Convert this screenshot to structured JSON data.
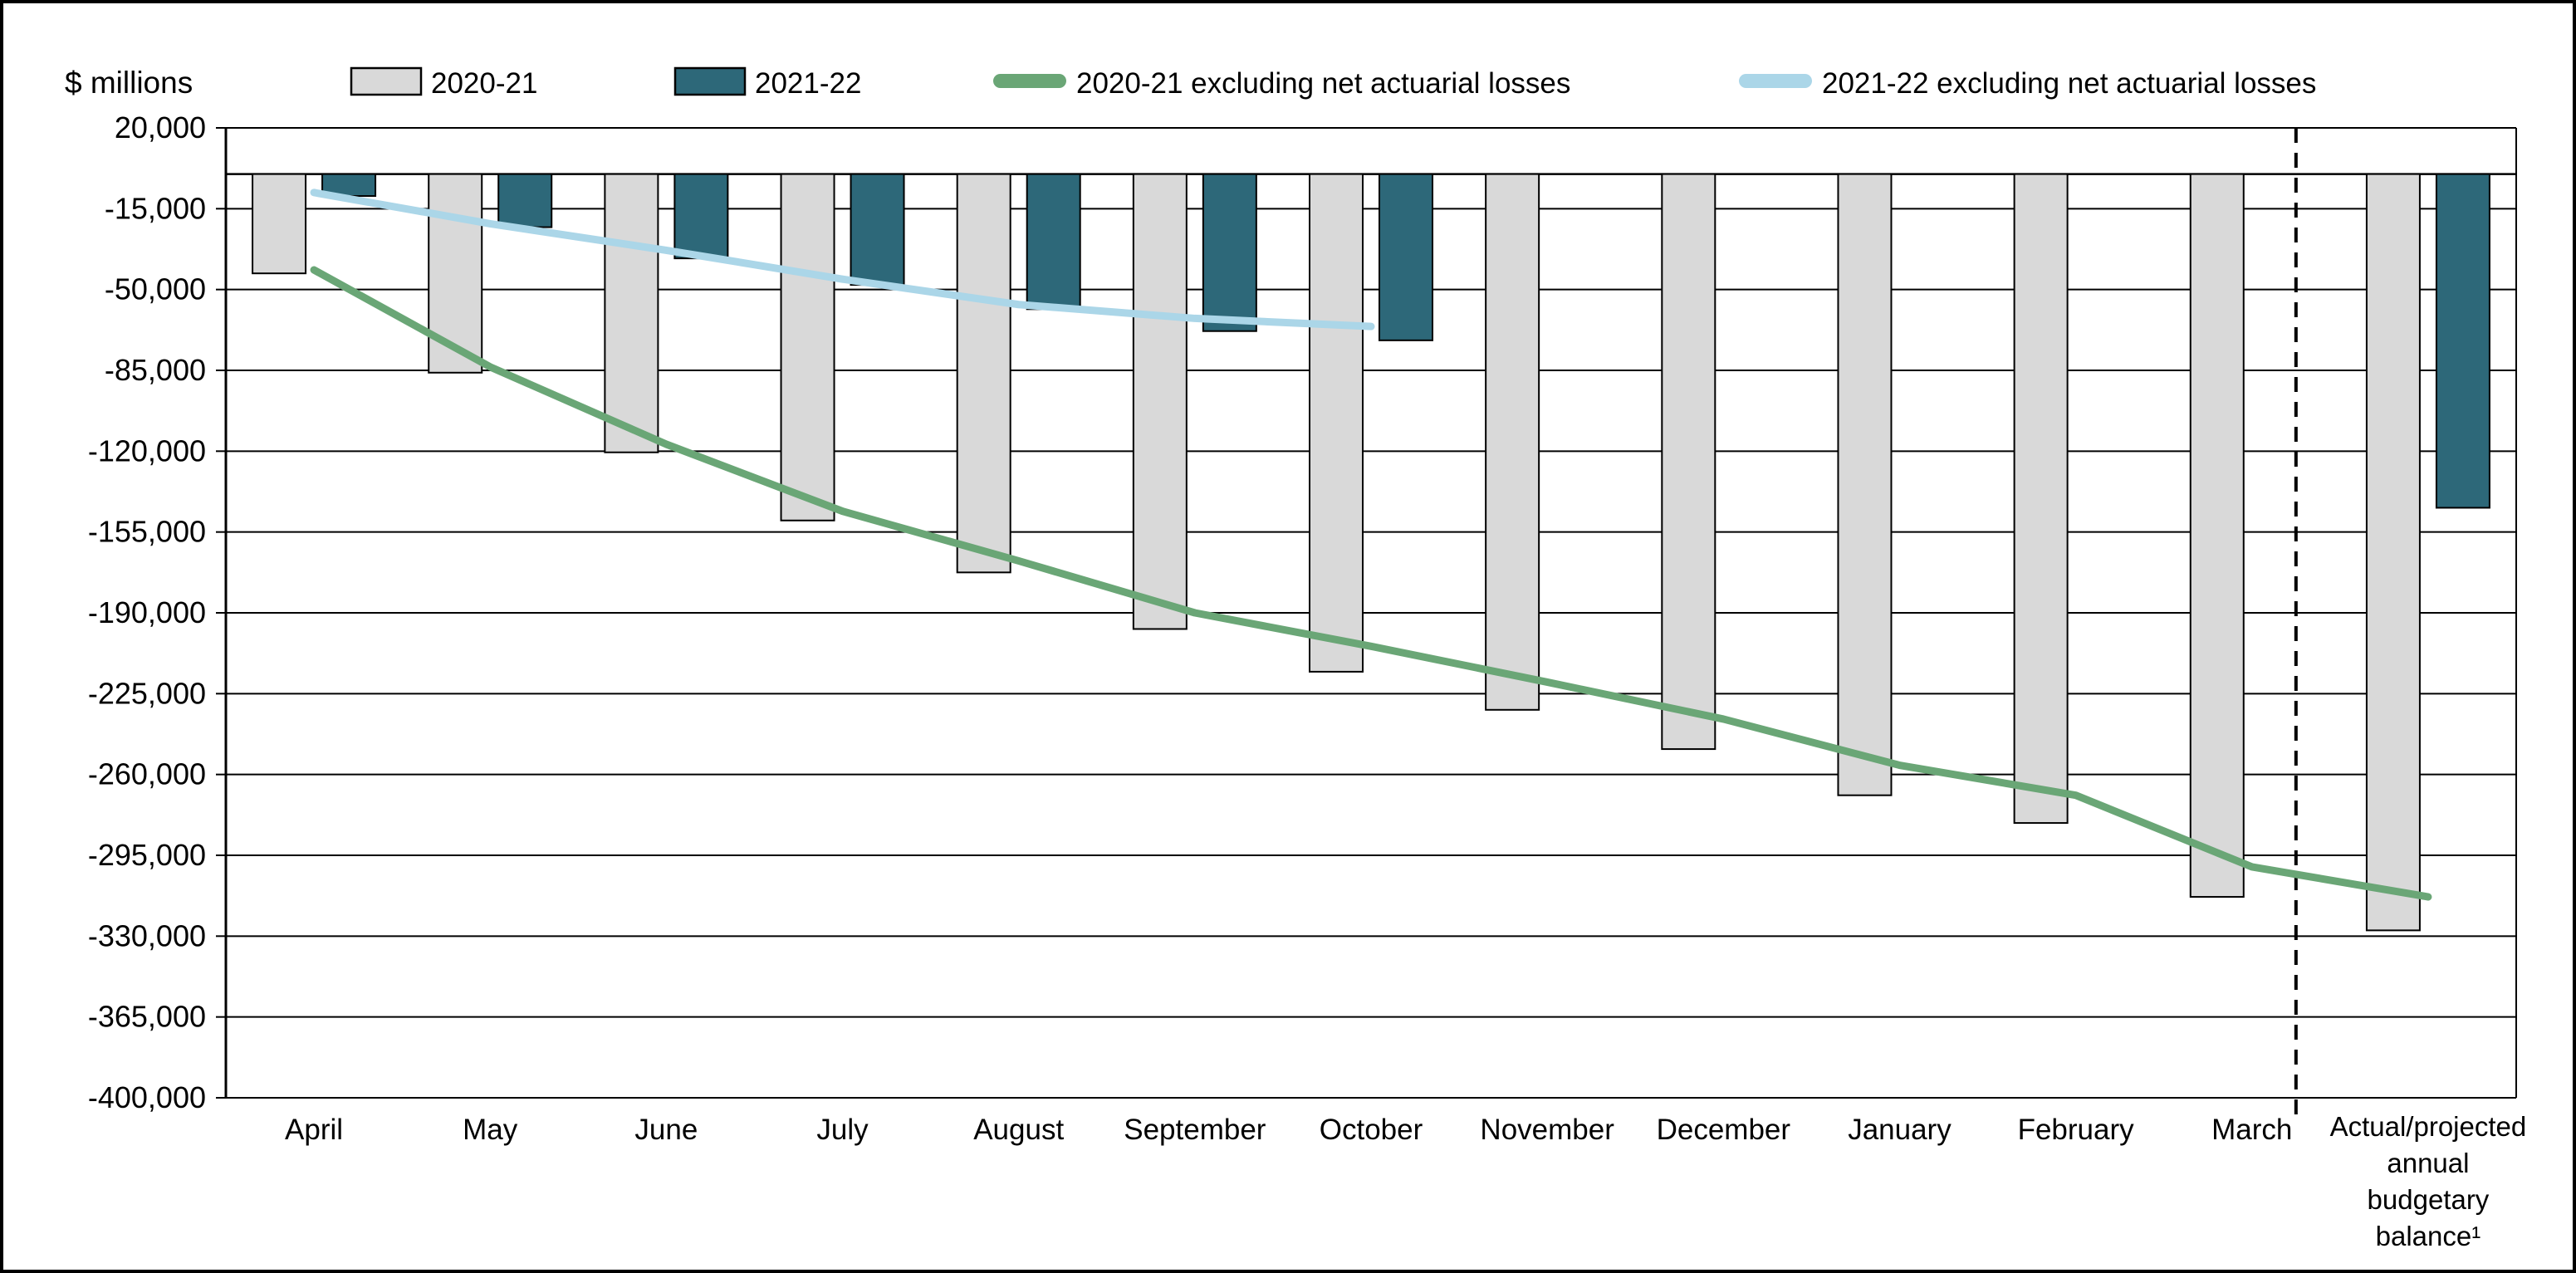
{
  "chart_data": {
    "type": "combo-bar-line",
    "unit_label": "$ millions",
    "legend_position": "top",
    "grid": "horizontal",
    "background_color": "#ffffff",
    "grid_color": "#000000",
    "text_color": "#000000",
    "bar_border_color": "#000000",
    "categories": [
      "April",
      "May",
      "June",
      "July",
      "August",
      "September",
      "October",
      "November",
      "December",
      "January",
      "February",
      "March",
      "Actual/projected annual budgetary balance¹"
    ],
    "series": [
      {
        "name": "2020-21",
        "type": "bar",
        "color": "#d9d9d9",
        "values": [
          -43000,
          -86000,
          -120500,
          -150000,
          -172500,
          -197000,
          -215500,
          -232000,
          -249000,
          -269000,
          -281000,
          -313000,
          -327500
        ]
      },
      {
        "name": "2021-22",
        "type": "bar",
        "color": "#2d6879",
        "values": [
          -9500,
          -23000,
          -36500,
          -48000,
          -58500,
          -68000,
          -72000,
          null,
          null,
          null,
          null,
          null,
          -144500
        ]
      },
      {
        "name": "2020-21 excluding net actuarial losses",
        "type": "line",
        "color": "#6aa676",
        "values": [
          -41500,
          -83500,
          -117000,
          -146000,
          -167500,
          -190000,
          -204500,
          -220000,
          -236000,
          -256000,
          -269000,
          -300000,
          -313000
        ]
      },
      {
        "name": "2021-22 excluding net actuarial losses",
        "type": "line",
        "color": "#abd6e8",
        "values": [
          -8000,
          -21500,
          -33000,
          -45500,
          -56500,
          -62500,
          -66000,
          null,
          null,
          null,
          null,
          null,
          null
        ]
      }
    ],
    "y_axis": {
      "min": -400000,
      "max": 20000,
      "tick_interval": 35000,
      "tick_labels": [
        "20,000",
        "-15,000",
        "-50,000",
        "-85,000",
        "-120,000",
        "-155,000",
        "-190,000",
        "-225,000",
        "-260,000",
        "-295,000",
        "-330,000",
        "-365,000",
        "-400,000"
      ]
    },
    "separator": {
      "style": "dashed-vertical-line",
      "position": "between March and annual column"
    }
  }
}
